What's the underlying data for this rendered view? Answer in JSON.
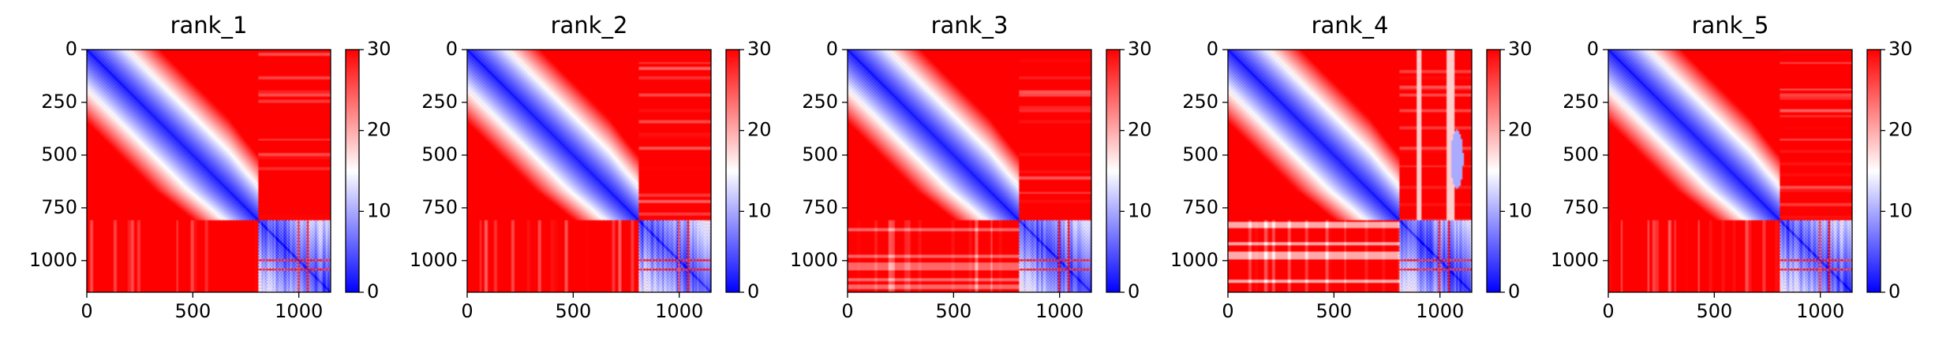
{
  "figure": {
    "panel_count": 5
  },
  "chart_data": [
    {
      "type": "heatmap",
      "title": "rank_1",
      "xlabel": "",
      "ylabel": "",
      "xlim": [
        0,
        1150
      ],
      "ylim": [
        1150,
        0
      ],
      "xticks": [
        0,
        500,
        1000
      ],
      "yticks": [
        0,
        250,
        500,
        750,
        1000
      ],
      "colormap": "bwr",
      "color_min": "#0000ff",
      "color_mid": "#ffffff",
      "color_max": "#ff0000",
      "clim": [
        0,
        30
      ],
      "colorbar_ticks": [
        0,
        10,
        20,
        30
      ],
      "block_boundary": 810,
      "variant": 1
    },
    {
      "type": "heatmap",
      "title": "rank_2",
      "xlabel": "",
      "ylabel": "",
      "xlim": [
        0,
        1150
      ],
      "ylim": [
        1150,
        0
      ],
      "xticks": [
        0,
        500,
        1000
      ],
      "yticks": [
        0,
        250,
        500,
        750,
        1000
      ],
      "colormap": "bwr",
      "color_min": "#0000ff",
      "color_mid": "#ffffff",
      "color_max": "#ff0000",
      "clim": [
        0,
        30
      ],
      "colorbar_ticks": [
        0,
        10,
        20,
        30
      ],
      "block_boundary": 810,
      "variant": 2
    },
    {
      "type": "heatmap",
      "title": "rank_3",
      "xlabel": "",
      "ylabel": "",
      "xlim": [
        0,
        1150
      ],
      "ylim": [
        1150,
        0
      ],
      "xticks": [
        0,
        500,
        1000
      ],
      "yticks": [
        0,
        250,
        500,
        750,
        1000
      ],
      "colormap": "bwr",
      "color_min": "#0000ff",
      "color_mid": "#ffffff",
      "color_max": "#ff0000",
      "clim": [
        0,
        30
      ],
      "colorbar_ticks": [
        0,
        10,
        20,
        30
      ],
      "block_boundary": 810,
      "variant": 3
    },
    {
      "type": "heatmap",
      "title": "rank_4",
      "xlabel": "",
      "ylabel": "",
      "xlim": [
        0,
        1150
      ],
      "ylim": [
        1150,
        0
      ],
      "xticks": [
        0,
        500,
        1000
      ],
      "yticks": [
        0,
        250,
        500,
        750,
        1000
      ],
      "colormap": "bwr",
      "color_min": "#0000ff",
      "color_mid": "#ffffff",
      "color_max": "#ff0000",
      "clim": [
        0,
        30
      ],
      "colorbar_ticks": [
        0,
        10,
        20,
        30
      ],
      "block_boundary": 810,
      "variant": 4
    },
    {
      "type": "heatmap",
      "title": "rank_5",
      "xlabel": "",
      "ylabel": "",
      "xlim": [
        0,
        1150
      ],
      "ylim": [
        1150,
        0
      ],
      "xticks": [
        0,
        500,
        1000
      ],
      "yticks": [
        0,
        250,
        500,
        750,
        1000
      ],
      "colormap": "bwr",
      "color_min": "#0000ff",
      "color_mid": "#ffffff",
      "color_max": "#ff0000",
      "clim": [
        0,
        30
      ],
      "colorbar_ticks": [
        0,
        10,
        20,
        30
      ],
      "block_boundary": 810,
      "variant": 5
    }
  ]
}
